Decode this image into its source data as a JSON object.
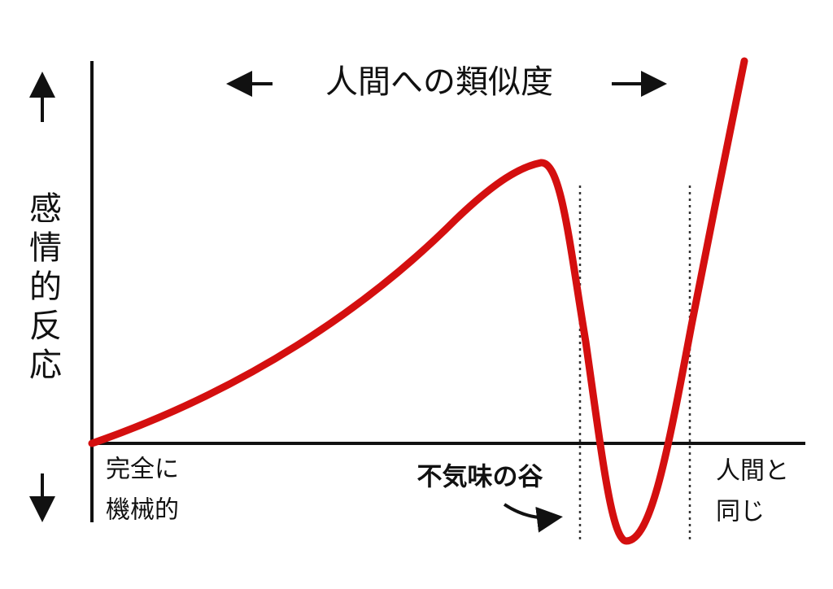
{
  "title": "人間への類似度",
  "y_axis_label": "感情的反応",
  "left_label": [
    "完全に",
    "機械的"
  ],
  "valley_label": "不気味の谷",
  "right_label": [
    "人間と",
    "同じ"
  ]
}
